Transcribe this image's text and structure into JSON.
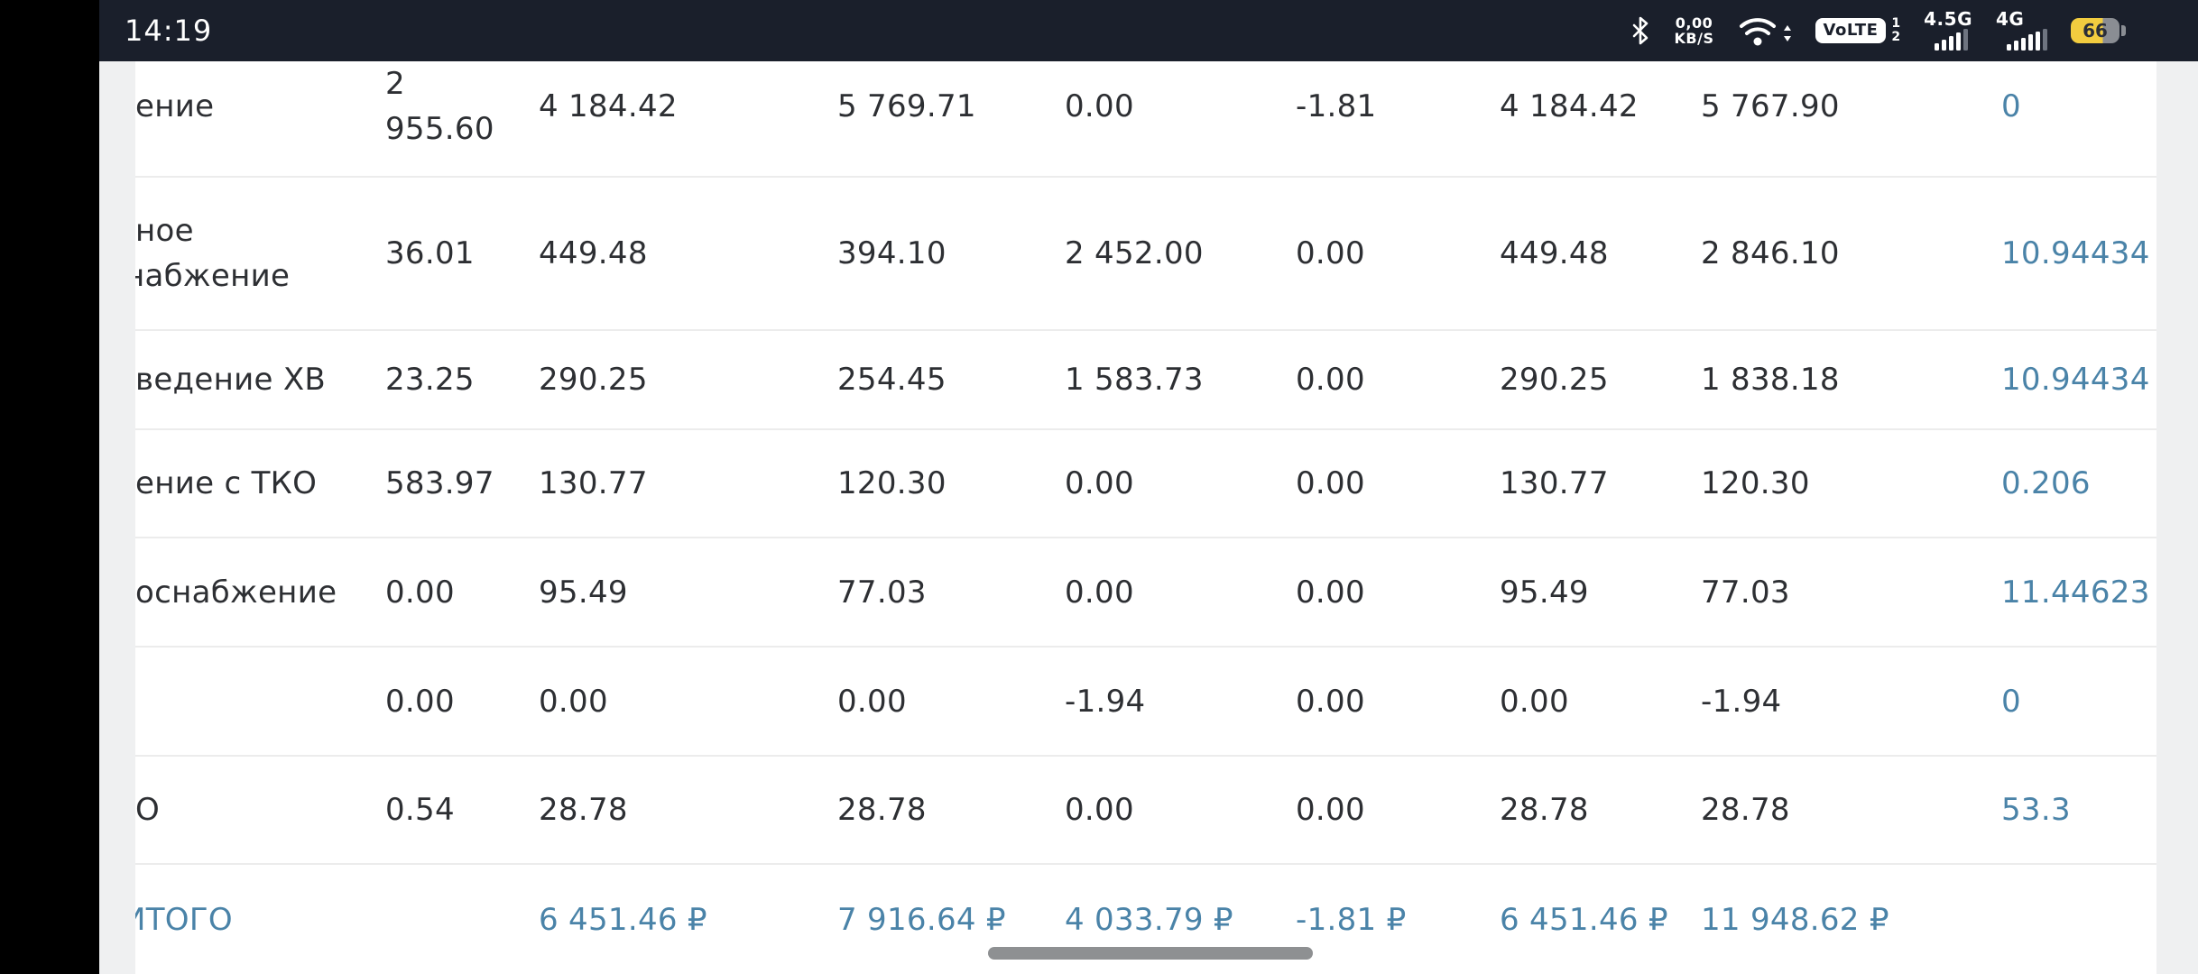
{
  "status_bar": {
    "time": "14:19",
    "network_speed_line1": "0,00",
    "network_speed_line2": "KB/S",
    "volte_label": "VoLTE",
    "sim1": "1",
    "sim2": "2",
    "net1_label": "4.5G",
    "net2_label": "4G",
    "battery_percent": "66",
    "colors": {
      "bar_bg": "#1A1F2B",
      "battery_yellow": "#F2CC3F"
    }
  },
  "table": {
    "accent_color": "#4A83A8",
    "rows": [
      {
        "label_lines": [
          "ение"
        ],
        "values": [
          "2 955.60",
          "4 184.42",
          "5 769.71",
          "0.00",
          "-1.81",
          "4 184.42",
          "5 767.90"
        ],
        "reading": "0"
      },
      {
        "label_lines": [
          "ное",
          "набжение"
        ],
        "values": [
          "36.01",
          "449.48",
          "394.10",
          "2 452.00",
          "0.00",
          "449.48",
          "2 846.10"
        ],
        "reading": "10.94434"
      },
      {
        "label_lines": [
          "ведение ХВ"
        ],
        "values": [
          "23.25",
          "290.25",
          "254.45",
          "1 583.73",
          "0.00",
          "290.25",
          "1 838.18"
        ],
        "reading": "10.94434"
      },
      {
        "label_lines": [
          "ение с ТКО"
        ],
        "values": [
          "583.97",
          "130.77",
          "120.30",
          "0.00",
          "0.00",
          "130.77",
          "120.30"
        ],
        "reading": "0.206"
      },
      {
        "label_lines": [
          "оснабжение"
        ],
        "values": [
          "0.00",
          "95.49",
          "77.03",
          "0.00",
          "0.00",
          "95.49",
          "77.03"
        ],
        "reading": "11.44623"
      },
      {
        "label_lines": [
          ""
        ],
        "values": [
          "0.00",
          "0.00",
          "0.00",
          "-1.94",
          "0.00",
          "0.00",
          "-1.94"
        ],
        "reading": "0"
      },
      {
        "label_lines": [
          "О"
        ],
        "values": [
          "0.54",
          "28.78",
          "28.78",
          "0.00",
          "0.00",
          "28.78",
          "28.78"
        ],
        "reading": "53.3"
      }
    ],
    "footer": {
      "label": "ИТОГО",
      "values": [
        "",
        "6 451.46 ₽",
        "7 916.64 ₽",
        "4 033.79 ₽",
        "-1.81 ₽",
        "6 451.46 ₽",
        "11 948.62 ₽"
      ],
      "reading": ""
    }
  }
}
